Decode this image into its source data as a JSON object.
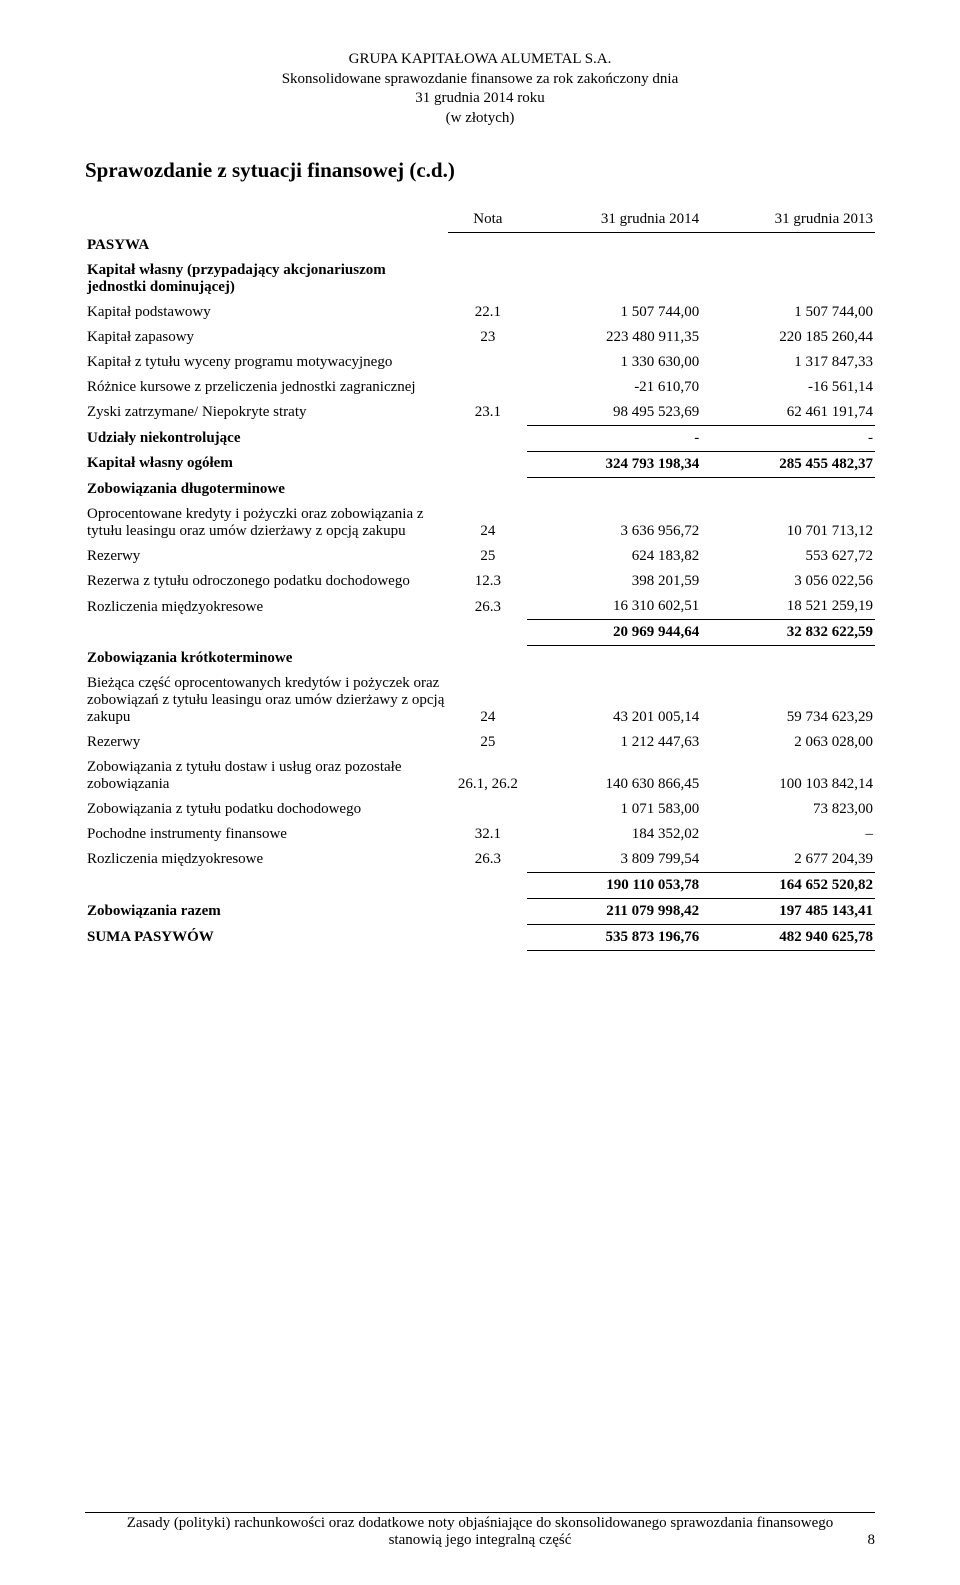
{
  "header": {
    "company": "GRUPA KAPITAŁOWA ALUMETAL S.A.",
    "line2": "Skonsolidowane sprawozdanie finansowe za rok zakończony dnia",
    "line3": "31 grudnia 2014 roku",
    "line4": "(w złotych)"
  },
  "title": "Sprawozdanie z sytuacji finansowej (c.d.)",
  "columns": {
    "nota": "Nota",
    "c1": "31 grudnia 2014",
    "c2": "31 grudnia 2013"
  },
  "pasywa_label": "PASYWA",
  "equity_heading": "Kapitał własny (przypadający akcjonariuszom jednostki dominującej)",
  "rows": {
    "kap_podst": {
      "label": "Kapitał podstawowy",
      "note": "22.1",
      "v1": "1 507 744,00",
      "v2": "1 507 744,00"
    },
    "kap_zapas": {
      "label": "Kapitał zapasowy",
      "note": "23",
      "v1": "223 480 911,35",
      "v2": "220 185 260,44"
    },
    "kap_motyw": {
      "label": "Kapitał z tytułu wyceny programu motywacyjnego",
      "note": "",
      "v1": "1 330 630,00",
      "v2": "1 317 847,33"
    },
    "roznice": {
      "label": "Różnice kursowe z przeliczenia jednostki zagranicznej",
      "note": "",
      "v1": "-21 610,70",
      "v2": "-16 561,14"
    },
    "zyski": {
      "label": "Zyski zatrzymane/ Niepokryte straty",
      "note": "23.1",
      "v1": "98 495 523,69",
      "v2": "62 461 191,74"
    },
    "udzialy": {
      "label": "Udziały niekontrolujące",
      "note": "",
      "v1": "-",
      "v2": "-"
    },
    "kap_ogolem": {
      "label": "Kapitał własny ogółem",
      "note": "",
      "v1": "324 793 198,34",
      "v2": "285 455 482,37"
    },
    "zob_dlugo_h": {
      "label": "Zobowiązania długoterminowe"
    },
    "oprocent": {
      "label": "Oprocentowane kredyty i pożyczki oraz zobowiązania z tytułu leasingu oraz umów dzierżawy z opcją zakupu",
      "note": "24",
      "v1": "3 636 956,72",
      "v2": "10 701 713,12"
    },
    "rezerwy1": {
      "label": "Rezerwy",
      "note": "25",
      "v1": "624 183,82",
      "v2": "553 627,72"
    },
    "rez_pod": {
      "label": "Rezerwa z tytułu odroczonego podatku dochodowego",
      "note": "12.3",
      "v1": "398 201,59",
      "v2": "3 056 022,56"
    },
    "rozlicz1": {
      "label": "Rozliczenia międzyokresowe",
      "note": "26.3",
      "v1": "16 310 602,51",
      "v2": "18 521 259,19"
    },
    "sub_dlugo": {
      "label": "",
      "note": "",
      "v1": "20 969 944,64",
      "v2": "32 832 622,59"
    },
    "zob_krot_h": {
      "label": "Zobowiązania krótkoterminowe"
    },
    "biezaca": {
      "label": "Bieżąca część oprocentowanych kredytów i pożyczek oraz zobowiązań z tytułu leasingu oraz umów dzierżawy z opcją zakupu",
      "note": "24",
      "v1": "43 201 005,14",
      "v2": "59 734 623,29"
    },
    "rezerwy2": {
      "label": "Rezerwy",
      "note": "25",
      "v1": "1 212 447,63",
      "v2": "2 063 028,00"
    },
    "zob_dostaw": {
      "label": "Zobowiązania z tytułu dostaw i usług oraz pozostałe zobowiązania",
      "note": "26.1, 26.2",
      "v1": "140 630 866,45",
      "v2": "100 103 842,14"
    },
    "zob_podatk": {
      "label": "Zobowiązania z tytułu podatku dochodowego",
      "note": "",
      "v1": "1 071 583,00",
      "v2": "73 823,00"
    },
    "pochodne": {
      "label": "Pochodne instrumenty finansowe",
      "note": "32.1",
      "v1": "184 352,02",
      "v2": "–"
    },
    "rozlicz2": {
      "label": "Rozliczenia międzyokresowe",
      "note": "26.3",
      "v1": "3 809 799,54",
      "v2": "2 677 204,39"
    },
    "sub_krot": {
      "label": "",
      "note": "",
      "v1": "190 110 053,78",
      "v2": "164 652 520,82"
    },
    "zob_razem": {
      "label": "Zobowiązania razem",
      "note": "",
      "v1": "211 079 998,42",
      "v2": "197 485 143,41"
    },
    "suma": {
      "label": "SUMA PASYWÓW",
      "note": "",
      "v1": "535 873 196,76",
      "v2": "482 940 625,78"
    }
  },
  "footer": {
    "line1": "Zasady (polityki) rachunkowości oraz dodatkowe noty objaśniające do skonsolidowanego sprawozdania finansowego",
    "line2": "stanowią jego integralną część",
    "pagenum": "8"
  }
}
